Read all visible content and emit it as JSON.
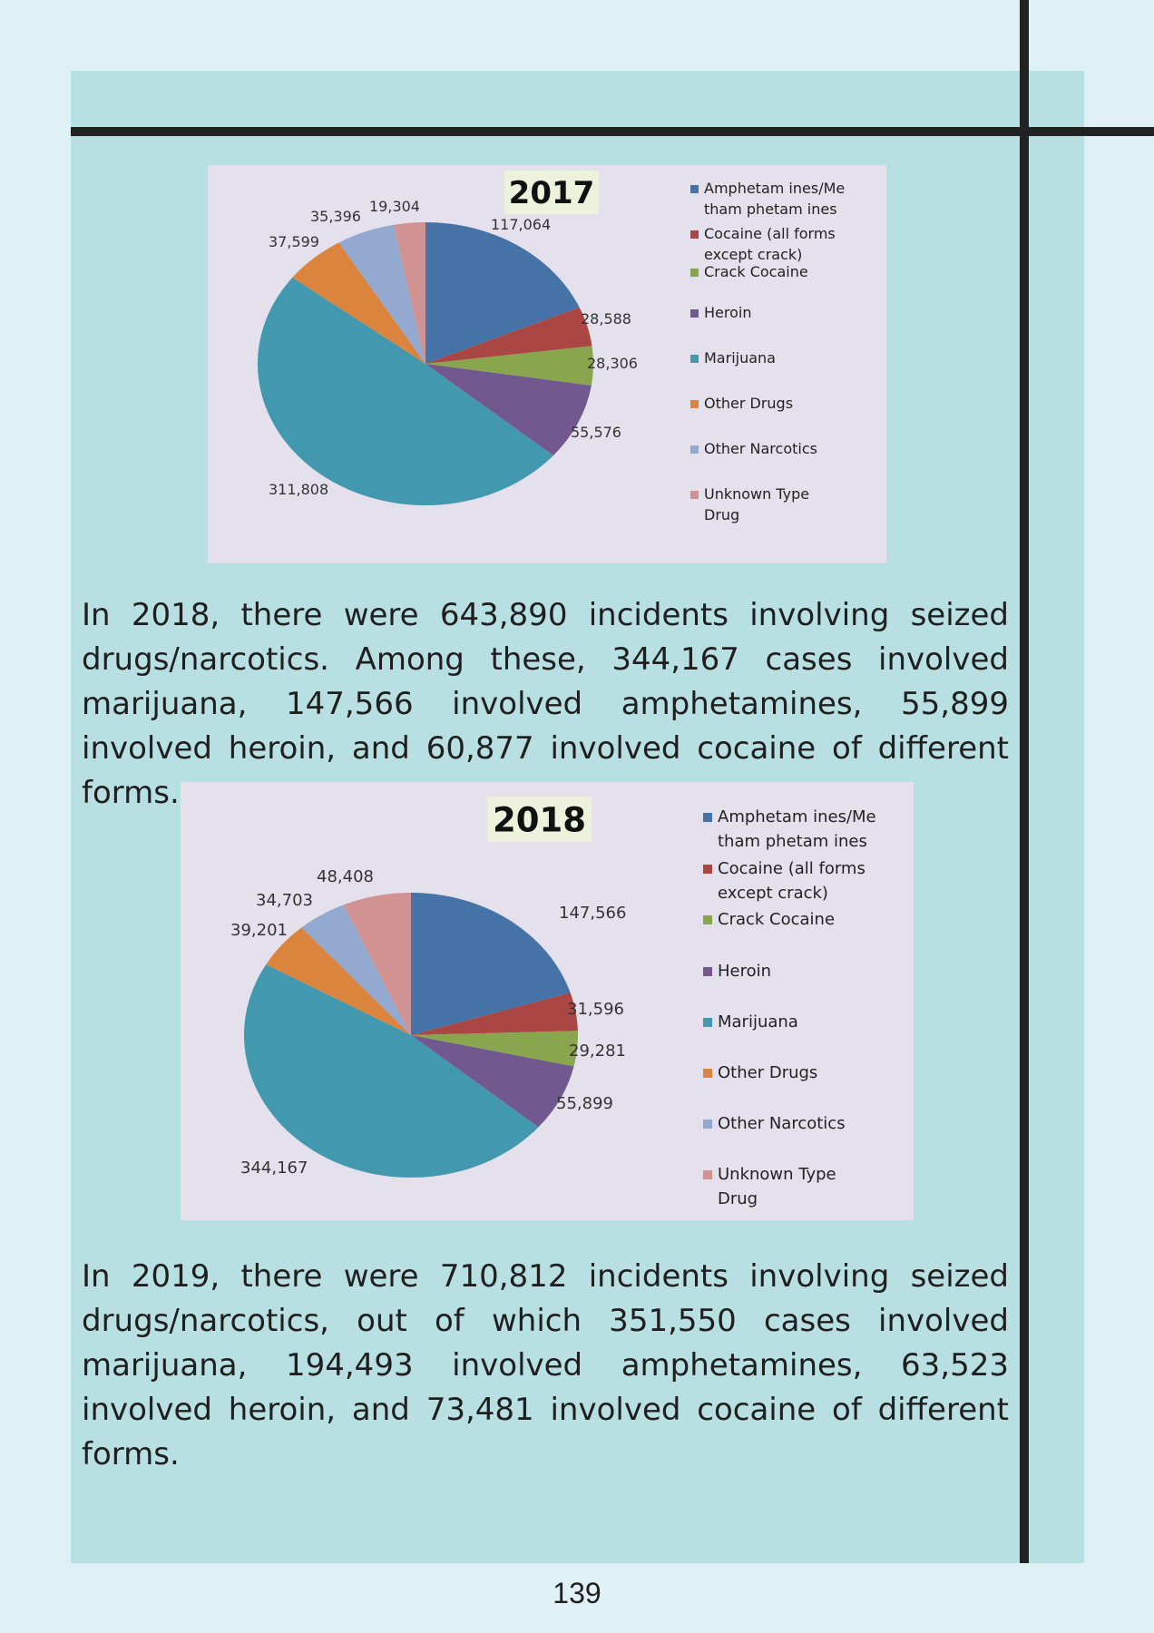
{
  "paragraphs": {
    "p2018": "In 2018, there were 643,890 incidents involving seized drugs/narcotics. Among these, 344,167 cases involved marijuana, 147,566 involved amphetamines, 55,899 involved heroin, and 60,877 involved cocaine of different forms.",
    "p2019": "In 2019, there were 710,812 incidents involving seized drugs/narcotics, out of which 351,550 cases involved marijuana, 194,493 involved amphetamines, 63,523 involved heroin, and 73,481 involved cocaine of different forms."
  },
  "page_number": "139",
  "colors": {
    "page_background": "#dff1f4",
    "panel": "#b8e0e2",
    "rules": "#222222",
    "chart_background": "#e4e0ec",
    "title_background": "#edf2dc"
  },
  "chart_data": [
    {
      "type": "pie",
      "title": "2017",
      "legend_position": "right",
      "categories": [
        "Amphetamines/Methamphetamines",
        "Cocaine (all forms except crack)",
        "Crack Cocaine",
        "Heroin",
        "Marijuana",
        "Other Drugs",
        "Other Narcotics",
        "Unknown Type Drug"
      ],
      "legend_labels": [
        [
          "Amphetam ines/Me",
          "tham phetam ines"
        ],
        [
          "Cocaine (all forms",
          "except crack)"
        ],
        [
          "Crack Cocaine"
        ],
        [
          "Heroin"
        ],
        [
          "Marijuana"
        ],
        [
          "Other Drugs"
        ],
        [
          "Other Narcotics"
        ],
        [
          "Unknown Type",
          "Drug"
        ]
      ],
      "values": [
        117064,
        28588,
        28306,
        55576,
        311808,
        37599,
        35396,
        19304
      ],
      "data_labels": [
        "117,064",
        "28,588",
        "28,306",
        "55,576",
        "311,808",
        "37,599",
        "35,396",
        "19,304"
      ],
      "colors": [
        "#4572a7",
        "#aa4643",
        "#89a54e",
        "#71588f",
        "#4198af",
        "#db843d",
        "#93a9cf",
        "#d19392"
      ]
    },
    {
      "type": "pie",
      "title": "2018",
      "legend_position": "right",
      "categories": [
        "Amphetamines/Methamphetamines",
        "Cocaine (all forms except crack)",
        "Crack Cocaine",
        "Heroin",
        "Marijuana",
        "Other Drugs",
        "Other Narcotics",
        "Unknown Type Drug"
      ],
      "legend_labels": [
        [
          "Amphetam ines/Me",
          "tham phetam ines"
        ],
        [
          "Cocaine (all forms",
          "except crack)"
        ],
        [
          "Crack Cocaine"
        ],
        [
          "Heroin"
        ],
        [
          "Marijuana"
        ],
        [
          "Other Drugs"
        ],
        [
          "Other Narcotics"
        ],
        [
          "Unknown Type",
          "Drug"
        ]
      ],
      "values": [
        147566,
        31596,
        29281,
        55899,
        344167,
        39201,
        34703,
        48408
      ],
      "data_labels": [
        "147,566",
        "31,596",
        "29,281",
        "55,899",
        "344,167",
        "39,201",
        "34,703",
        "48,408"
      ],
      "colors": [
        "#4572a7",
        "#aa4643",
        "#89a54e",
        "#71588f",
        "#4198af",
        "#db843d",
        "#93a9cf",
        "#d19392"
      ]
    }
  ]
}
